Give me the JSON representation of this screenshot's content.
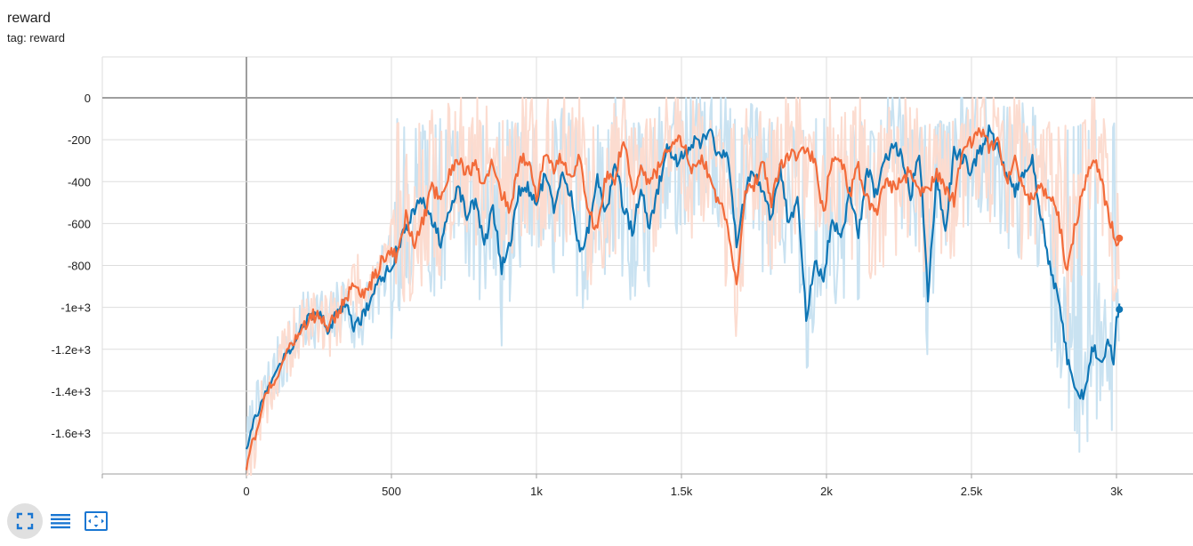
{
  "card": {
    "title": "reward",
    "tag": "tag: reward"
  },
  "toolbar": {
    "buttons": [
      {
        "icon": "fullscreen-icon"
      },
      {
        "icon": "list-lines-icon"
      },
      {
        "icon": "fit-domain-icon"
      }
    ]
  },
  "colors": {
    "blue_smoothed": "#0f76b5",
    "blue_raw": "#c9e2f1",
    "orange_smoothed": "#f26b3a",
    "orange_raw": "#fcdcd0",
    "grid": "#dddddd",
    "axis": "#9e9e9e",
    "toolbar_icon": "#1976d2"
  },
  "chart_data": {
    "type": "line",
    "title": "",
    "xlabel": "",
    "ylabel": "",
    "xlim": [
      -500,
      3300
    ],
    "ylim": [
      -1800,
      200
    ],
    "x_ticks": [
      0,
      500,
      1000,
      1500,
      2000,
      2500,
      3000
    ],
    "x_tick_labels": [
      "0",
      "500",
      "1k",
      "1.5k",
      "2k",
      "2.5k",
      "3k"
    ],
    "y_ticks": [
      0,
      -200,
      -400,
      -600,
      -800,
      -1000,
      -1200,
      -1400,
      -1600
    ],
    "y_tick_labels": [
      "0",
      "-200",
      "-400",
      "-600",
      "-800",
      "-1e+3",
      "-1.2e+3",
      "-1.4e+3",
      "-1.6e+3"
    ],
    "grid": true,
    "series": [
      {
        "color": "blue",
        "x": [
          0,
          20,
          40,
          60,
          80,
          100,
          120,
          140,
          160,
          180,
          200,
          220,
          250,
          280,
          310,
          340,
          370,
          400,
          430,
          460,
          490,
          520,
          550,
          580,
          610,
          640,
          670,
          700,
          730,
          760,
          790,
          820,
          850,
          880,
          910,
          940,
          970,
          1000,
          1030,
          1060,
          1090,
          1120,
          1150,
          1180,
          1210,
          1240,
          1270,
          1300,
          1330,
          1360,
          1390,
          1420,
          1450,
          1480,
          1510,
          1540,
          1570,
          1600,
          1630,
          1660,
          1690,
          1720,
          1750,
          1780,
          1810,
          1840,
          1870,
          1900,
          1930,
          1960,
          1990,
          2020,
          2050,
          2080,
          2110,
          2140,
          2170,
          2200,
          2230,
          2260,
          2290,
          2320,
          2350,
          2380,
          2410,
          2440,
          2470,
          2500,
          2530,
          2560,
          2590,
          2620,
          2650,
          2680,
          2710,
          2740,
          2770,
          2800,
          2830,
          2860,
          2890,
          2920,
          2950,
          2970,
          2990,
          3000,
          3010
        ],
        "values": [
          -1680,
          -1560,
          -1500,
          -1430,
          -1360,
          -1320,
          -1260,
          -1220,
          -1180,
          -1120,
          -1080,
          -1050,
          -1020,
          -1100,
          -1030,
          -970,
          -1100,
          -1050,
          -950,
          -880,
          -820,
          -730,
          -620,
          -530,
          -500,
          -580,
          -690,
          -520,
          -420,
          -560,
          -500,
          -700,
          -520,
          -820,
          -680,
          -450,
          -430,
          -510,
          -360,
          -520,
          -380,
          -480,
          -740,
          -620,
          -360,
          -560,
          -300,
          -520,
          -640,
          -440,
          -610,
          -430,
          -230,
          -300,
          -260,
          -210,
          -210,
          -170,
          -290,
          -260,
          -690,
          -440,
          -340,
          -450,
          -580,
          -340,
          -600,
          -490,
          -1060,
          -800,
          -860,
          -560,
          -690,
          -440,
          -650,
          -340,
          -460,
          -310,
          -220,
          -280,
          -470,
          -250,
          -940,
          -370,
          -630,
          -250,
          -290,
          -350,
          -250,
          -160,
          -250,
          -360,
          -440,
          -370,
          -300,
          -570,
          -800,
          -960,
          -1250,
          -1400,
          -1430,
          -1180,
          -1290,
          -1120,
          -1250,
          -1050,
          -1010
        ]
      },
      {
        "color": "orange",
        "x": [
          0,
          20,
          40,
          60,
          80,
          100,
          120,
          140,
          160,
          180,
          200,
          220,
          250,
          280,
          310,
          340,
          370,
          400,
          430,
          460,
          490,
          520,
          550,
          580,
          610,
          640,
          670,
          700,
          730,
          760,
          790,
          820,
          850,
          880,
          910,
          940,
          970,
          1000,
          1030,
          1060,
          1090,
          1120,
          1150,
          1180,
          1210,
          1240,
          1270,
          1300,
          1330,
          1360,
          1390,
          1420,
          1450,
          1480,
          1510,
          1540,
          1570,
          1600,
          1630,
          1660,
          1690,
          1720,
          1750,
          1780,
          1810,
          1840,
          1870,
          1900,
          1930,
          1960,
          1990,
          2020,
          2050,
          2080,
          2110,
          2140,
          2170,
          2200,
          2230,
          2260,
          2290,
          2320,
          2350,
          2380,
          2410,
          2440,
          2470,
          2500,
          2530,
          2560,
          2590,
          2620,
          2650,
          2680,
          2710,
          2740,
          2770,
          2800,
          2830,
          2860,
          2890,
          2920,
          2950,
          2970,
          2990,
          3000,
          3010
        ],
        "values": [
          -1780,
          -1650,
          -1580,
          -1450,
          -1380,
          -1350,
          -1280,
          -1200,
          -1170,
          -1130,
          -1100,
          -1040,
          -1050,
          -1090,
          -1040,
          -970,
          -870,
          -950,
          -880,
          -800,
          -720,
          -760,
          -560,
          -700,
          -580,
          -430,
          -480,
          -370,
          -290,
          -360,
          -330,
          -410,
          -290,
          -460,
          -530,
          -300,
          -290,
          -480,
          -250,
          -330,
          -280,
          -410,
          -270,
          -560,
          -610,
          -370,
          -380,
          -190,
          -450,
          -320,
          -410,
          -340,
          -250,
          -190,
          -230,
          -350,
          -270,
          -410,
          -490,
          -620,
          -900,
          -420,
          -420,
          -310,
          -500,
          -320,
          -280,
          -270,
          -240,
          -300,
          -550,
          -270,
          -290,
          -460,
          -330,
          -490,
          -560,
          -410,
          -420,
          -410,
          -340,
          -440,
          -460,
          -350,
          -440,
          -490,
          -240,
          -210,
          -150,
          -240,
          -200,
          -400,
          -290,
          -440,
          -500,
          -420,
          -470,
          -570,
          -830,
          -590,
          -420,
          -270,
          -420,
          -540,
          -650,
          -700,
          -670
        ]
      }
    ]
  }
}
